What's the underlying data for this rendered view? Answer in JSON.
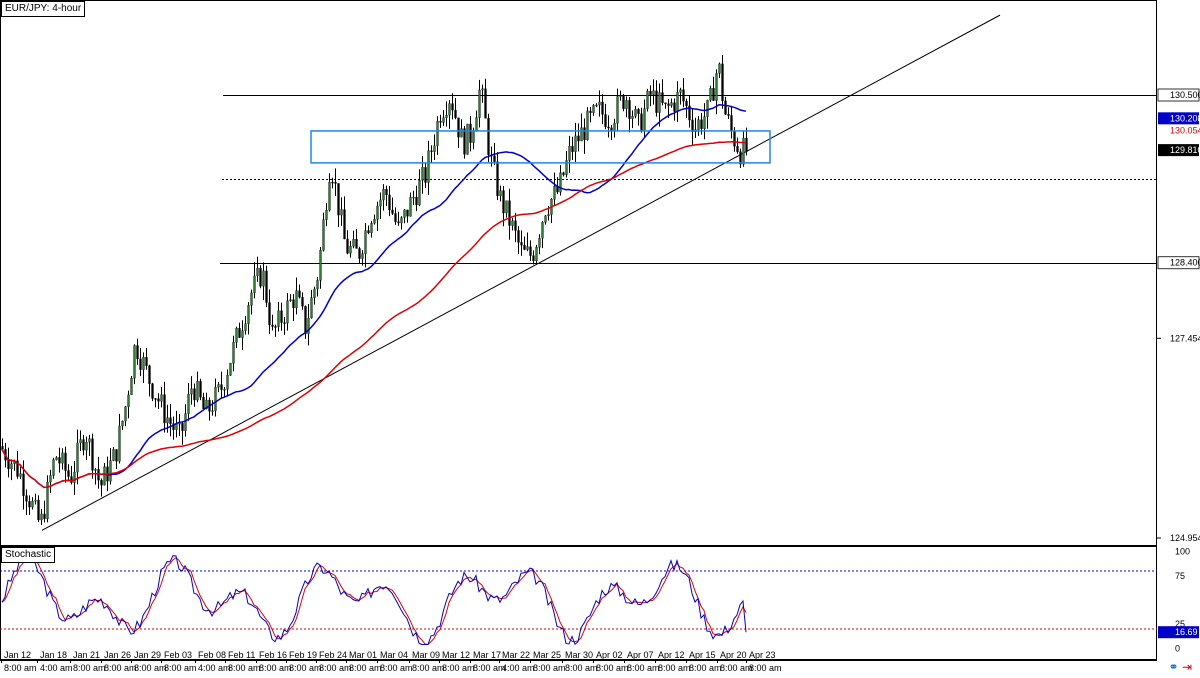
{
  "header": {
    "title": "EUR/JPY: 4-hour"
  },
  "stoch_panel": {
    "title": "Stochastic"
  },
  "colors": {
    "bull_candle": "#2e7d32",
    "bear_candle": "#000000",
    "ma_short": "#0000cc",
    "ma_long": "#e00000",
    "box": "#1e88e5",
    "stoch_main": "#0000cc",
    "stoch_signal": "#e00000",
    "level_80": "#0000cc",
    "level_20": "#e00000"
  },
  "chart_data": [
    {
      "type": "candlestick",
      "ylim": [
        124.8,
        131.6
      ],
      "y_ticks": [
        "130.500",
        "130.208",
        "130.054",
        "129.810",
        "128.400",
        "127.454",
        "124.954"
      ],
      "x_ticks": [
        "Jan 12",
        "Jan 18",
        "Jan 21",
        "Jan 26",
        "Jan 29",
        "Feb 03",
        "Feb 08",
        "Feb 11",
        "Feb 16",
        "Feb 19",
        "Feb 24",
        "Mar 01",
        "Mar 04",
        "Mar 09",
        "Mar 12",
        "Mar 17",
        "Mar 22",
        "Mar 25",
        "Mar 30",
        "Apr 02",
        "Apr 07",
        "Apr 12",
        "Apr 15",
        "Apr 20",
        "Apr 23"
      ],
      "x_time_labels": [
        "8:00 am",
        "4:00 am",
        "8:00 am",
        "8:00 am",
        "8:00 am",
        "8:00 am",
        "4:00 am",
        "8:00 am",
        "8:00 am",
        "8:00 am",
        "8:00 am",
        "8:00 am",
        "8:00 am",
        "8:00 am",
        "8:00 am",
        "8:00 am",
        "4:00 am",
        "8:00 am",
        "8:00 am",
        "8:00 am",
        "8:00 am",
        "8:00 am",
        "8:00 am",
        "8:00 am",
        "8:00 am"
      ],
      "anchors": [
        [
          0,
          126.1
        ],
        [
          18,
          125.8
        ],
        [
          40,
          125.1
        ],
        [
          55,
          126.0
        ],
        [
          70,
          125.7
        ],
        [
          85,
          126.3
        ],
        [
          100,
          125.6
        ],
        [
          115,
          126.0
        ],
        [
          125,
          126.6
        ],
        [
          135,
          127.4
        ],
        [
          150,
          126.9
        ],
        [
          165,
          126.5
        ],
        [
          180,
          126.2
        ],
        [
          192,
          126.9
        ],
        [
          205,
          126.5
        ],
        [
          220,
          126.8
        ],
        [
          235,
          127.4
        ],
        [
          250,
          128.0
        ],
        [
          262,
          128.3
        ],
        [
          272,
          127.5
        ],
        [
          285,
          127.8
        ],
        [
          295,
          128.0
        ],
        [
          305,
          127.6
        ],
        [
          318,
          128.3
        ],
        [
          330,
          129.7
        ],
        [
          345,
          128.6
        ],
        [
          358,
          128.5
        ],
        [
          370,
          129.0
        ],
        [
          385,
          129.3
        ],
        [
          398,
          128.8
        ],
        [
          412,
          129.2
        ],
        [
          425,
          129.5
        ],
        [
          440,
          130.3
        ],
        [
          450,
          130.5
        ],
        [
          462,
          129.9
        ],
        [
          470,
          130.0
        ],
        [
          480,
          130.6
        ],
        [
          490,
          129.7
        ],
        [
          500,
          129.2
        ],
        [
          510,
          128.9
        ],
        [
          522,
          128.5
        ],
        [
          532,
          128.5
        ],
        [
          545,
          129.1
        ],
        [
          558,
          129.3
        ],
        [
          570,
          129.8
        ],
        [
          585,
          130.1
        ],
        [
          598,
          130.3
        ],
        [
          610,
          130.2
        ],
        [
          625,
          130.5
        ],
        [
          638,
          130.1
        ],
        [
          650,
          130.5
        ],
        [
          665,
          130.3
        ],
        [
          680,
          130.5
        ],
        [
          695,
          130.1
        ],
        [
          708,
          130.3
        ],
        [
          718,
          130.9
        ],
        [
          724,
          130.3
        ],
        [
          732,
          130.0
        ],
        [
          740,
          129.8
        ],
        [
          746,
          129.8
        ]
      ],
      "price_labels": [
        {
          "text": "130.500",
          "value": 130.5,
          "style": "line"
        },
        {
          "text": "130.208",
          "value": 130.208,
          "style": "blue"
        },
        {
          "text": "130.054",
          "value": 130.054,
          "style": "plain"
        },
        {
          "text": "129.810",
          "value": 129.81,
          "style": "current"
        },
        {
          "text": "128.400",
          "value": 128.4,
          "style": "line"
        }
      ],
      "horizontal_levels": [
        {
          "value": 130.5,
          "from_x": 223,
          "style": "solid"
        },
        {
          "value": 128.4,
          "from_x": 220,
          "style": "solid"
        },
        {
          "value": 129.45,
          "from_x": 222,
          "style": "dotted"
        }
      ],
      "rectangle": {
        "y_top": 130.05,
        "y_bottom": 129.65,
        "x_from": 311,
        "x_to": 770
      },
      "trendline": {
        "points": [
          [
            42,
            125.05
          ],
          [
            1000,
            131.5
          ]
        ]
      }
    },
    {
      "type": "line",
      "name": "Stochastic",
      "ylim": [
        0,
        100
      ],
      "y_ticks": [
        "100",
        "75",
        "25",
        "0"
      ],
      "levels": [
        80,
        20
      ],
      "current_value": "16.69"
    }
  ]
}
